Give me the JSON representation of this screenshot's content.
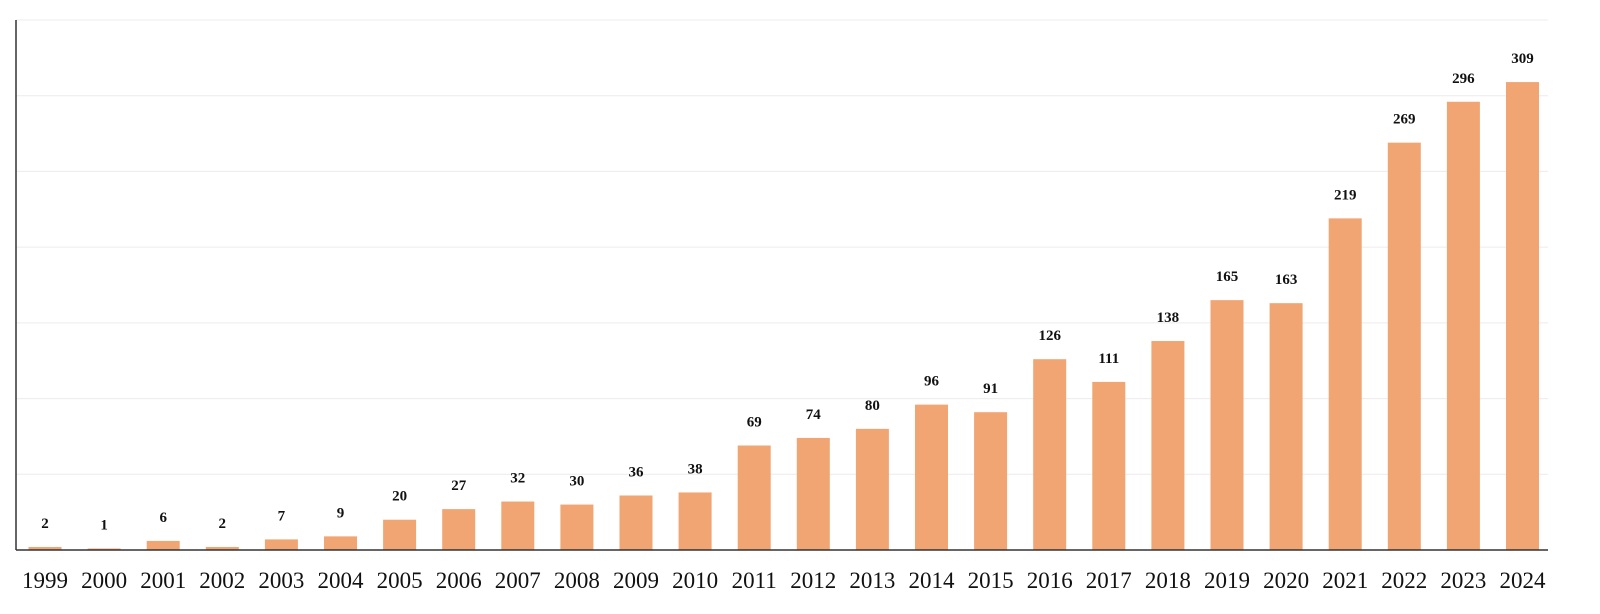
{
  "chart_data": {
    "type": "bar",
    "categories": [
      "1999",
      "2000",
      "2001",
      "2002",
      "2003",
      "2004",
      "2005",
      "2006",
      "2007",
      "2008",
      "2009",
      "2010",
      "2011",
      "2012",
      "2013",
      "2014",
      "2015",
      "2016",
      "2017",
      "2018",
      "2019",
      "2020",
      "2021",
      "2022",
      "2023",
      "2024"
    ],
    "values": [
      2,
      1,
      6,
      2,
      7,
      9,
      20,
      27,
      32,
      30,
      36,
      38,
      69,
      74,
      80,
      96,
      91,
      126,
      111,
      138,
      165,
      163,
      219,
      269,
      296,
      309
    ],
    "title": "",
    "xlabel": "",
    "ylabel": "",
    "ylim": [
      0,
      350
    ],
    "grid": true,
    "data_labels": true,
    "bar_color": "#F0A572"
  }
}
